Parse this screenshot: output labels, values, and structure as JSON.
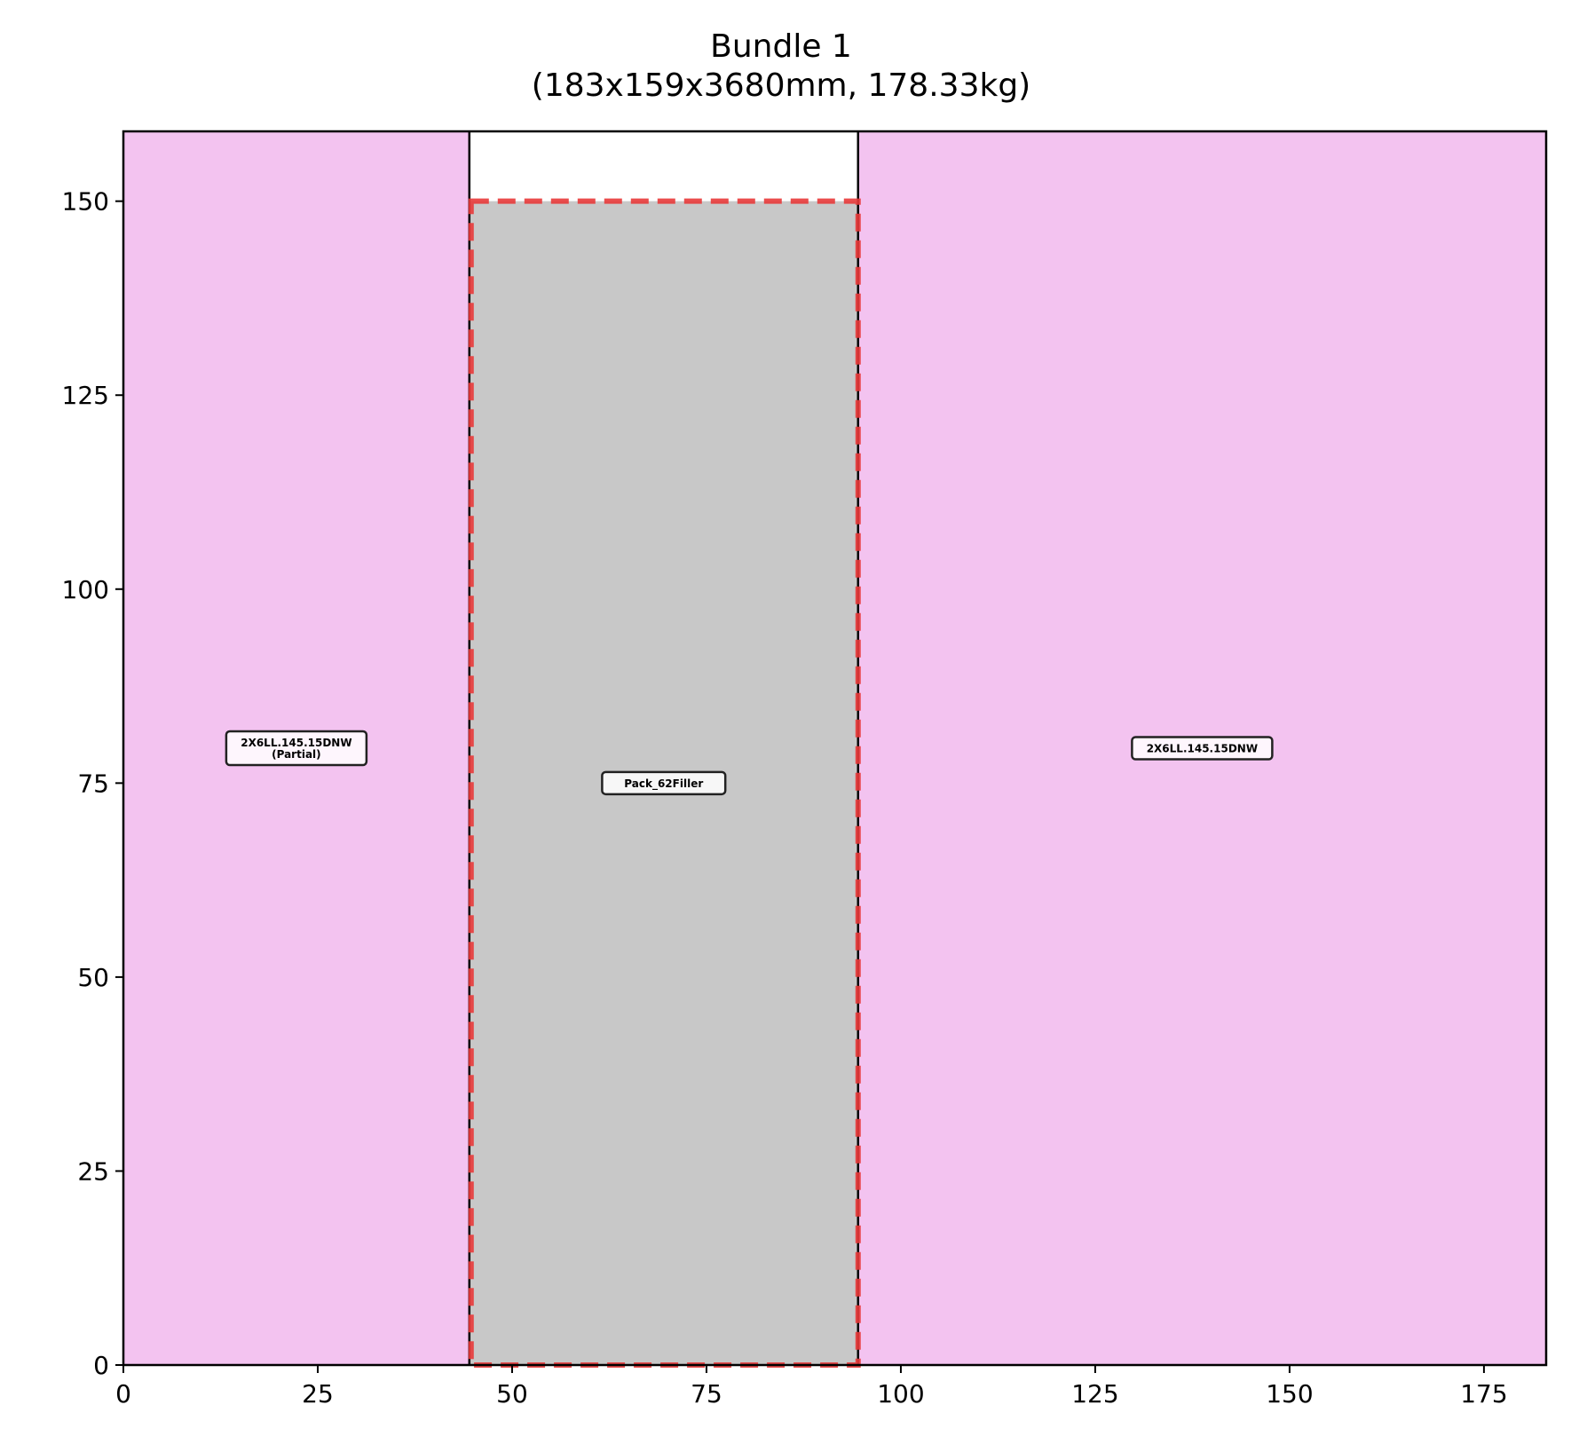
{
  "chart_data": {
    "type": "bar",
    "title": "Bundle 1",
    "subtitle": "(183x159x3680mm, 178.33kg)",
    "xlabel": "",
    "ylabel": "",
    "xlim": [
      0,
      183
    ],
    "ylim": [
      0,
      159
    ],
    "x_ticks": [
      "0",
      "25",
      "50",
      "75",
      "100",
      "125",
      "150",
      "175"
    ],
    "y_ticks": [
      "0",
      "25",
      "50",
      "75",
      "100",
      "125",
      "150"
    ],
    "grid": false,
    "rectangles": [
      {
        "x0": 0,
        "x1": 44.5,
        "y0": 0,
        "y1": 159,
        "fill": "#f3c3f0",
        "edge": "#000000",
        "label": [
          "2X6LL.145.15DNW",
          "(Partial)"
        ]
      },
      {
        "x0": 44.5,
        "x1": 94.5,
        "y0": 0,
        "y1": 150,
        "fill": "#c8c8c8",
        "edge": "#000000",
        "label": [
          "Pack_62Filler"
        ]
      },
      {
        "x0": 94.5,
        "x1": 183,
        "y0": 0,
        "y1": 159,
        "fill": "#f3c3f0",
        "edge": "#000000",
        "label": [
          "2X6LL.145.15DNW"
        ]
      }
    ],
    "highlight_box": {
      "x0": 44.5,
      "x1": 94.5,
      "y0": 0,
      "y1": 150,
      "color": "#e83a3a",
      "style": "dashed"
    }
  }
}
